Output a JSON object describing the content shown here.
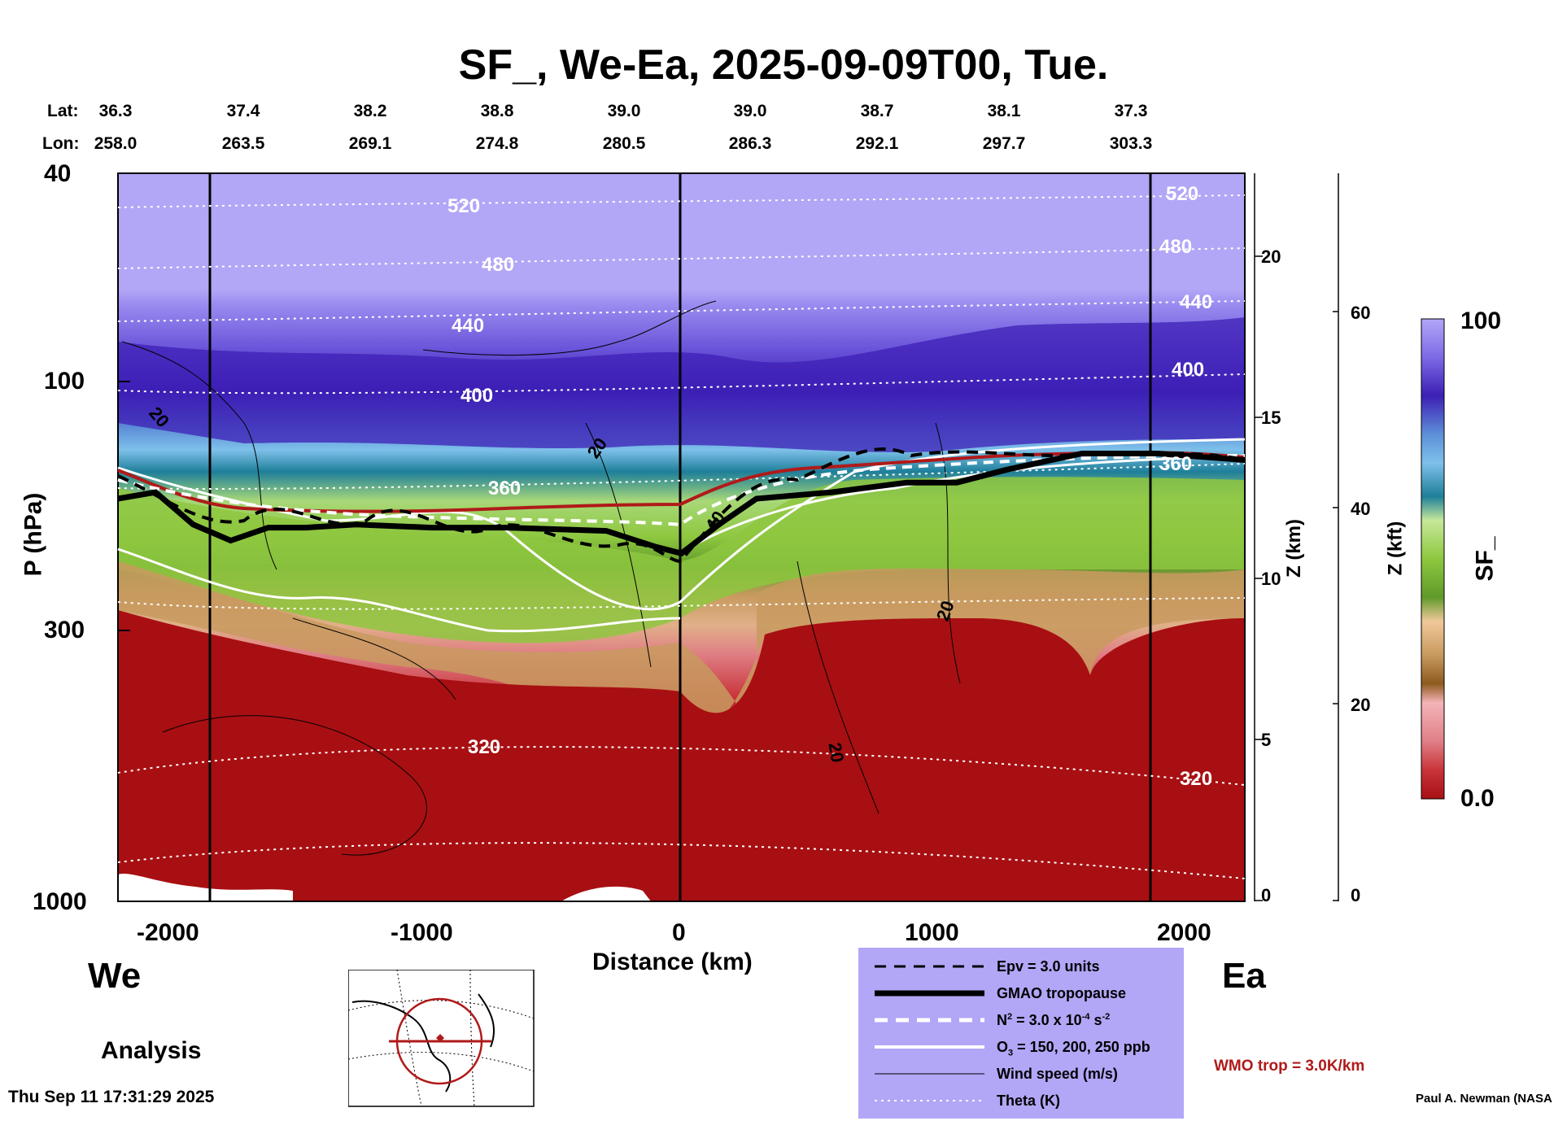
{
  "title": "SF_, We-Ea, 2025-09-09T00, Tue.",
  "lat_label": "Lat:",
  "lon_label": "Lon:",
  "lat_values": [
    "36.3",
    "37.4",
    "38.2",
    "38.8",
    "39.0",
    "39.0",
    "38.7",
    "38.1",
    "37.3"
  ],
  "lon_values": [
    "258.0",
    "263.5",
    "269.1",
    "274.8",
    "280.5",
    "286.3",
    "292.1",
    "297.7",
    "303.3"
  ],
  "left_direction": "We",
  "right_direction": "Ea",
  "analysis_label": "Analysis",
  "timestamp": "Thu Sep 11 17:31:29 2025",
  "credit": "Paul A. Newman (NASA",
  "wmo_text": "WMO trop = 3.0K/km",
  "legend": {
    "epv": "Epv = 3.0 units",
    "tropopause": "GMAO tropopause",
    "n2_prefix": "N",
    "n2_middle": " = 3.0 x 10",
    "n2_exp": "-4",
    "n2_suffix": " s",
    "o3_prefix": "O",
    "o3_suffix": " = 150, 200, 250 ppb",
    "wind": "Wind speed (m/s)",
    "theta": "Theta (K)"
  },
  "colors": {
    "purple_top": "#b2a6f7",
    "dark_blue": "#3d1fb5",
    "light_blue": "#7ec0ea",
    "teal": "#1e7f9a",
    "green": "#8ec73f",
    "tan": "#c89a5f",
    "pink": "#e07f86",
    "dark_red": "#a80f12",
    "trop_red": "#b01a1a"
  },
  "chart_data": {
    "type": "heatmap",
    "variable": "SF_",
    "xlabel": "Distance (km)",
    "ylabel": "P (hPa)",
    "right_axis1_label": "Z (km)",
    "right_axis2_label": "Z (kft)",
    "xlim": [
      -2250,
      2250
    ],
    "x_ticks": [
      "-2000",
      "-1000",
      "0",
      "1000",
      "2000"
    ],
    "ylim_hpa": [
      1000,
      40
    ],
    "y_ticks": [
      "40",
      "100",
      "300",
      "1000"
    ],
    "z_km_ticks": [
      "20",
      "15",
      "10",
      "5",
      "0"
    ],
    "z_kft_ticks": [
      "60",
      "40",
      "20",
      "0"
    ],
    "colorbar_min": "0.0",
    "colorbar_max": "100",
    "colorbar_label": "SF_",
    "theta_contours": [
      "520",
      "480",
      "440",
      "400",
      "360",
      "320"
    ],
    "right_theta_labels": [
      "520",
      "480",
      "440",
      "400",
      "360",
      "320"
    ],
    "wind_contour_labels": [
      "20",
      "20",
      "20",
      "20",
      "40",
      "20"
    ],
    "tropopause_km": [
      {
        "x": -2250,
        "z": 12.5
      },
      {
        "x": -2100,
        "z": 12.7
      },
      {
        "x": -1950,
        "z": 11.7
      },
      {
        "x": -1800,
        "z": 11.2
      },
      {
        "x": -1650,
        "z": 11.6
      },
      {
        "x": -1500,
        "z": 11.6
      },
      {
        "x": -1300,
        "z": 11.7
      },
      {
        "x": -1000,
        "z": 11.6
      },
      {
        "x": -700,
        "z": 11.6
      },
      {
        "x": -300,
        "z": 11.5
      },
      {
        "x": -100,
        "z": 11.0
      },
      {
        "x": 0,
        "z": 10.8
      },
      {
        "x": 150,
        "z": 11.7
      },
      {
        "x": 300,
        "z": 12.5
      },
      {
        "x": 600,
        "z": 12.7
      },
      {
        "x": 900,
        "z": 13.0
      },
      {
        "x": 1100,
        "z": 13.0
      },
      {
        "x": 1300,
        "z": 13.4
      },
      {
        "x": 1600,
        "z": 13.9
      },
      {
        "x": 1900,
        "z": 13.9
      },
      {
        "x": 2250,
        "z": 13.7
      }
    ]
  }
}
